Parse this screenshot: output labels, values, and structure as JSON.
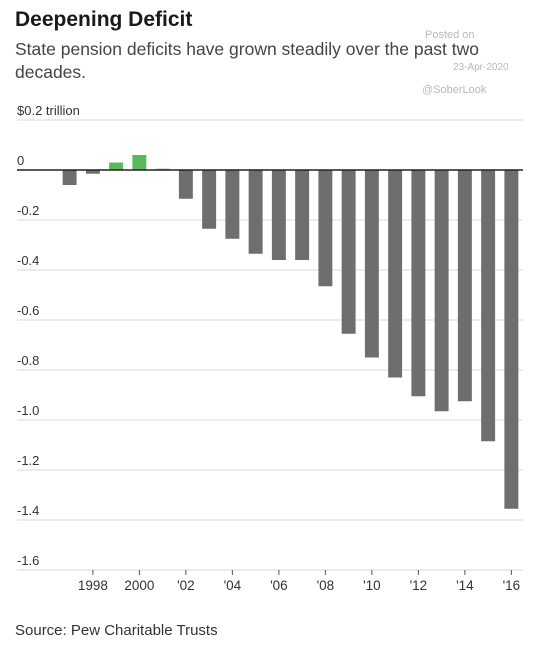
{
  "header": {
    "title": "Deepening Deficit",
    "subtitle": "State pension deficits have grown steadily over the past two decades."
  },
  "watermark": {
    "posted": "Posted on",
    "date": "23-Apr-2020",
    "handle": "@SoberLook"
  },
  "footer": {
    "source": "Source: Pew Charitable Trusts"
  },
  "colors": {
    "positive": "#5cb85c",
    "negative": "#6e6e6e",
    "grid": "#d9d9d9",
    "zero_line": "#222222"
  },
  "chart_data": {
    "type": "bar",
    "title": "Deepening Deficit",
    "subtitle": "State pension deficits have grown steadily over the past two decades.",
    "xlabel": "",
    "ylabel": "",
    "unit": "trillion",
    "ylim": [
      -1.6,
      0.2
    ],
    "yticks": [
      0.2,
      0,
      -0.2,
      -0.4,
      -0.6,
      -0.8,
      -1.0,
      -1.2,
      -1.4,
      -1.6
    ],
    "ytick_labels": [
      "$0.2 trillion",
      "0",
      "-0.2",
      "-0.4",
      "-0.6",
      "-0.8",
      "-1.0",
      "-1.2",
      "-1.4",
      "-1.6"
    ],
    "categories": [
      "1997",
      "1998",
      "1999",
      "2000",
      "2001",
      "2002",
      "2003",
      "2004",
      "2005",
      "2006",
      "2007",
      "2008",
      "2009",
      "2010",
      "2011",
      "2012",
      "2013",
      "2014",
      "2015",
      "2016"
    ],
    "xtick_labels": {
      "1998": "1998",
      "2000": "2000",
      "2002": "'02",
      "2004": "'04",
      "2006": "'06",
      "2008": "'08",
      "2010": "'10",
      "2012": "'12",
      "2014": "'14",
      "2016": "'16"
    },
    "values": [
      -0.06,
      -0.015,
      0.03,
      0.06,
      0.005,
      -0.115,
      -0.235,
      -0.275,
      -0.335,
      -0.36,
      -0.36,
      -0.465,
      -0.655,
      -0.75,
      -0.83,
      -0.905,
      -0.965,
      -0.925,
      -1.085,
      -1.355
    ],
    "grid": true
  }
}
